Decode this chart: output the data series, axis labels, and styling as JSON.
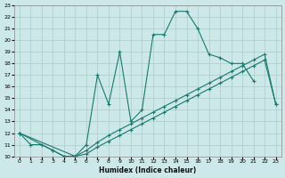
{
  "title": "",
  "xlabel": "Humidex (Indice chaleur)",
  "xlim": [
    -0.5,
    23.5
  ],
  "ylim": [
    10,
    23
  ],
  "xticks": [
    0,
    1,
    2,
    3,
    4,
    5,
    6,
    7,
    8,
    9,
    10,
    11,
    12,
    13,
    14,
    15,
    16,
    17,
    18,
    19,
    20,
    21,
    22,
    23
  ],
  "yticks": [
    10,
    11,
    12,
    13,
    14,
    15,
    16,
    17,
    18,
    19,
    20,
    21,
    22,
    23
  ],
  "background_color": "#cce8e8",
  "grid_color": "#aacccc",
  "line_color": "#1a7a6e",
  "line1_x": [
    0,
    1,
    2,
    3,
    4,
    5,
    6,
    7,
    8,
    9,
    10,
    11,
    12,
    13,
    14,
    15,
    16,
    17,
    18,
    19,
    20,
    21
  ],
  "line1_y": [
    12,
    11,
    11,
    10.5,
    10,
    10,
    11,
    17,
    14.5,
    19,
    13,
    14,
    20.5,
    20.5,
    22.5,
    22.5,
    21,
    18.8,
    18.5,
    18,
    18,
    16.5
  ],
  "line2_x": [
    0,
    3,
    4,
    5,
    6,
    7,
    8,
    9,
    10,
    11,
    12,
    13,
    14,
    15,
    16,
    17,
    18,
    19,
    20,
    21,
    22,
    23
  ],
  "line2_y": [
    12,
    10.5,
    10,
    10,
    10.5,
    11.2,
    11.8,
    12.3,
    12.8,
    13.3,
    13.8,
    14.3,
    14.8,
    15.3,
    15.8,
    16.3,
    16.8,
    17.3,
    17.8,
    18.3,
    18.8,
    14.5
  ],
  "line3_x": [
    0,
    5,
    6,
    7,
    8,
    9,
    10,
    11,
    12,
    13,
    14,
    15,
    16,
    17,
    18,
    19,
    20,
    21,
    22,
    23
  ],
  "line3_y": [
    12,
    10,
    10.2,
    10.8,
    11.3,
    11.8,
    12.3,
    12.8,
    13.3,
    13.8,
    14.3,
    14.8,
    15.3,
    15.8,
    16.3,
    16.8,
    17.3,
    17.8,
    18.3,
    14.5
  ]
}
